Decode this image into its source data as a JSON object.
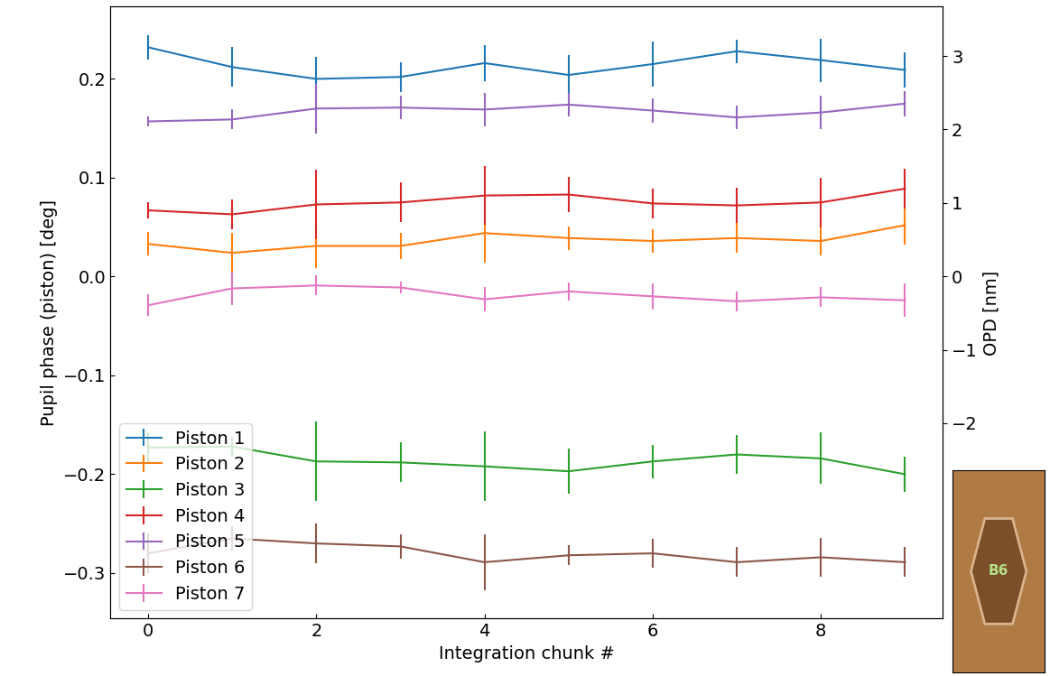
{
  "chart_data": {
    "type": "line",
    "x_label": "Integration chunk #",
    "y_label": "Pupil phase (piston) [deg]",
    "y2_label": "OPD [nm]",
    "x": [
      0,
      1,
      2,
      3,
      4,
      5,
      6,
      7,
      8,
      9
    ],
    "xlim": [
      -0.45,
      9.45
    ],
    "xticks": [
      0,
      2,
      4,
      6,
      8
    ],
    "ylim": [
      -0.346,
      0.273
    ],
    "yticks": [
      {
        "value": -0.3,
        "label": "−0.3"
      },
      {
        "value": -0.2,
        "label": "−0.2"
      },
      {
        "value": -0.1,
        "label": "−0.1"
      },
      {
        "value": 0,
        "label": "0.0"
      },
      {
        "value": 0.1,
        "label": "0.1"
      },
      {
        "value": 0.2,
        "label": "0.2"
      }
    ],
    "y2lim": [
      -4.66,
      3.67
    ],
    "y2ticks": [
      {
        "value": -2,
        "label": "−2"
      },
      {
        "value": -1,
        "label": "−1"
      },
      0,
      1,
      2,
      3
    ],
    "legend": "lower left",
    "grid": false,
    "inset_label": "B6",
    "series": [
      {
        "name": "Piston 1",
        "color": "#1f77b4",
        "values": [
          0.232,
          0.212,
          0.2,
          0.202,
          0.216,
          0.204,
          0.215,
          0.228,
          0.219,
          0.209
        ],
        "errors": [
          0.012,
          0.02,
          0.022,
          0.015,
          0.018,
          0.02,
          0.023,
          0.012,
          0.022,
          0.018
        ]
      },
      {
        "name": "Piston 2",
        "color": "#ff7f0e",
        "values": [
          0.033,
          0.024,
          0.031,
          0.031,
          0.044,
          0.039,
          0.036,
          0.039,
          0.036,
          0.052
        ],
        "errors": [
          0.012,
          0.02,
          0.022,
          0.013,
          0.03,
          0.012,
          0.012,
          0.015,
          0.015,
          0.02
        ]
      },
      {
        "name": "Piston 3",
        "color": "#2ca02c",
        "values": [
          -0.173,
          -0.172,
          -0.187,
          -0.188,
          -0.192,
          -0.197,
          -0.187,
          -0.18,
          -0.184,
          -0.2
        ],
        "errors": [
          0.015,
          0.01,
          0.04,
          0.02,
          0.035,
          0.023,
          0.017,
          0.02,
          0.026,
          0.018
        ]
      },
      {
        "name": "Piston 4",
        "color": "#d62728",
        "values": [
          0.067,
          0.063,
          0.073,
          0.075,
          0.082,
          0.083,
          0.074,
          0.072,
          0.075,
          0.089
        ],
        "errors": [
          0.008,
          0.015,
          0.035,
          0.02,
          0.03,
          0.018,
          0.015,
          0.018,
          0.025,
          0.02
        ]
      },
      {
        "name": "Piston 5",
        "color": "#9467bd",
        "values": [
          0.157,
          0.159,
          0.17,
          0.171,
          0.169,
          0.174,
          0.168,
          0.161,
          0.166,
          0.175
        ],
        "errors": [
          0.005,
          0.01,
          0.025,
          0.012,
          0.017,
          0.012,
          0.012,
          0.012,
          0.017,
          0.013
        ]
      },
      {
        "name": "Piston 6",
        "color": "#8c564b",
        "values": [
          -0.28,
          -0.265,
          -0.27,
          -0.273,
          -0.289,
          -0.282,
          -0.28,
          -0.289,
          -0.284,
          -0.289
        ],
        "errors": [
          0.02,
          0.012,
          0.02,
          0.012,
          0.028,
          0.01,
          0.015,
          0.015,
          0.02,
          0.015
        ]
      },
      {
        "name": "Piston 7",
        "color": "#e377c2",
        "values": [
          -0.029,
          -0.012,
          -0.009,
          -0.011,
          -0.023,
          -0.015,
          -0.02,
          -0.025,
          -0.021,
          -0.024
        ],
        "errors": [
          0.011,
          0.017,
          0.01,
          0.006,
          0.012,
          0.009,
          0.013,
          0.01,
          0.01,
          0.017
        ]
      }
    ]
  }
}
